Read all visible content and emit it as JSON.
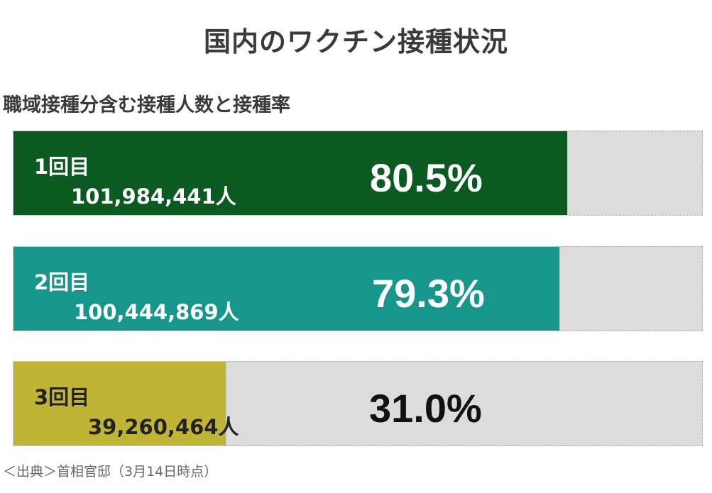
{
  "title": "国内のワクチン接種状況",
  "subtitle": "職域接種分含む接種人数と接種率",
  "source": "＜出典＞首相官邸（3月14日時点）",
  "colors": {
    "dose1": "#0b5a22",
    "dose2": "#17978c",
    "dose3": "#c0b434",
    "track": "#dcdcdc"
  },
  "chart_data": {
    "type": "bar",
    "orientation": "horizontal",
    "title": "国内のワクチン接種状況",
    "subtitle": "職域接種分含む接種人数と接種率",
    "ylim": [
      0,
      100
    ],
    "grid": false,
    "rows": [
      {
        "label": "1回目",
        "count": "101,984,441人",
        "percent": 80.5,
        "percent_label": "80.5%",
        "color": "#0b5a22",
        "text_color": "#ffffff",
        "pct_color": "#ffffff"
      },
      {
        "label": "2回目",
        "count": "100,444,869人",
        "percent": 79.3,
        "percent_label": "79.3%",
        "color": "#17978c",
        "text_color": "#ffffff",
        "pct_color": "#ffffff"
      },
      {
        "label": "3回目",
        "count": "39,260,464人",
        "percent": 31.0,
        "percent_label": "31.0%",
        "color": "#c0b434",
        "text_color": "#222222",
        "pct_color": "#111111"
      }
    ]
  }
}
